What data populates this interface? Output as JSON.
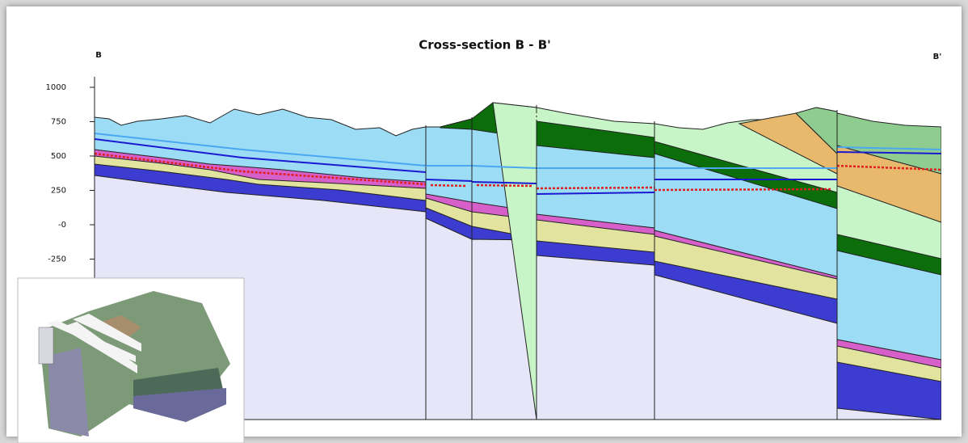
{
  "chart_data": {
    "type": "cross-section",
    "title": "Cross-section B - B'",
    "left_label": "B",
    "right_label": "B'",
    "ylim": [
      -1400,
      1000
    ],
    "yticks": [
      1000,
      750,
      500,
      250,
      {
        "value": 0,
        "label": "-0"
      },
      -250
    ]
  }
}
